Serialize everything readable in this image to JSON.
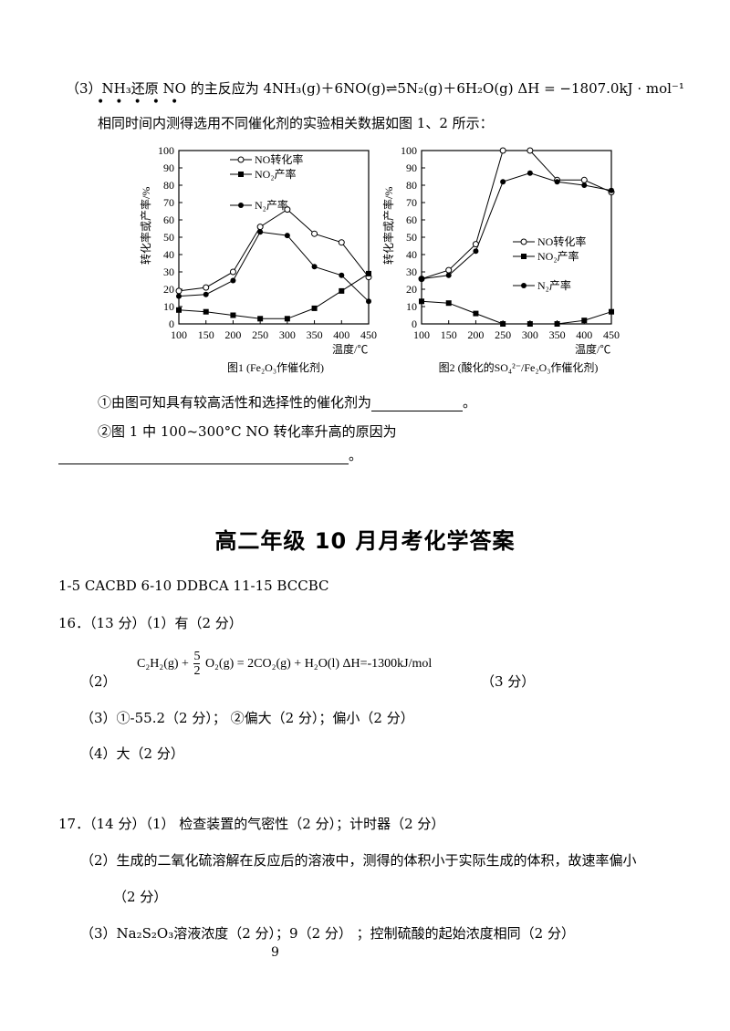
{
  "question3": {
    "line1": "（3）NH₃还原 NO 的主反应为 4NH₃(g)＋6NO(g)⇌5N₂(g)＋6H₂O(g)  ΔH = −1807.0kJ · mol⁻¹",
    "line2": "相同时间内测得选用不同催化剂的实验相关数据如图 1、2 所示：",
    "q1": "①由图可知具有较高活性和选择性的催化剂为",
    "q1_end": "。",
    "q2": "②图 1 中 100~300°C NO 转化率升高的原因为",
    "q2_end": "。"
  },
  "chart_data": [
    {
      "type": "line",
      "title": "图1 (Fe₂O₃作催化剂)",
      "xlabel": "温度/℃",
      "ylabel": "转化率或产率/%",
      "x": [
        100,
        150,
        200,
        250,
        300,
        350,
        400,
        450
      ],
      "xlim": [
        100,
        450
      ],
      "ylim": [
        0,
        100
      ],
      "yticks": [
        0,
        10,
        20,
        30,
        40,
        50,
        60,
        70,
        80,
        90,
        100
      ],
      "legend_position": "top-left",
      "series": [
        {
          "name": "NO转化率",
          "marker": "open-circle",
          "values": [
            19,
            21,
            30,
            56,
            66,
            52,
            47,
            27
          ]
        },
        {
          "name": "NO₂产率",
          "marker": "filled-square",
          "values": [
            8,
            7,
            5,
            3,
            3,
            9,
            19,
            29
          ]
        },
        {
          "name": "N₂产率",
          "marker": "filled-circle",
          "values": [
            16,
            17,
            25,
            53,
            51,
            33,
            28,
            13
          ]
        }
      ]
    },
    {
      "type": "line",
      "title": "图2 (酸化的SO₄²⁻/Fe₂O₃作催化剂)",
      "xlabel": "温度/℃",
      "ylabel": "转化率或产率/%",
      "x": [
        100,
        150,
        200,
        250,
        300,
        350,
        400,
        450
      ],
      "xlim": [
        100,
        450
      ],
      "ylim": [
        0,
        100
      ],
      "yticks": [
        0,
        10,
        20,
        30,
        40,
        50,
        60,
        70,
        80,
        90,
        100
      ],
      "legend_position": "middle-right",
      "series": [
        {
          "name": "NO转化率",
          "marker": "open-circle",
          "values": [
            26,
            31,
            46,
            100,
            100,
            83,
            83,
            76
          ]
        },
        {
          "name": "NO₂产率",
          "marker": "filled-square",
          "values": [
            13,
            12,
            6,
            0,
            0,
            0,
            2,
            7
          ]
        },
        {
          "name": "N₂产率",
          "marker": "filled-circle",
          "values": [
            26,
            28,
            42,
            82,
            87,
            82,
            80,
            77
          ]
        }
      ]
    }
  ],
  "answers": {
    "title": "高二年级 10 月月考化学答案",
    "mc": "1-5 CACBD   6-10 DDBCA   11-15 BCCBC",
    "q16_head": "16．（13 分）（1）有（2 分）",
    "q16_2_prefix": "（2）",
    "q16_2_eq_c2h2": "C₂H₂(g) +",
    "q16_2_eq_frac_num": "5",
    "q16_2_eq_frac_den": "2",
    "q16_2_eq_rest": "O₂(g) = 2CO₂(g) + H₂O(l)  ΔH=-1300kJ/mol",
    "q16_2_score": "（3 分）",
    "q16_3": "（3）①-55.2（2 分）；   ②偏大（2 分）；偏小（2 分）",
    "q16_4": "（4）大（2 分）",
    "q17_head": "17．（14 分）（1）   检查装置的气密性（2 分）；计时器（2 分）",
    "q17_2": "（2）生成的二氧化硫溶解在反应后的溶液中，测得的体积小于实际生成的体积，故速率偏小",
    "q17_2_score": "（2 分）",
    "q17_3": "（3）Na₂S₂O₃溶液浓度（2 分）；9（2 分）   ；控制硫酸的起始浓度相同（2 分）"
  },
  "page_number": "9"
}
